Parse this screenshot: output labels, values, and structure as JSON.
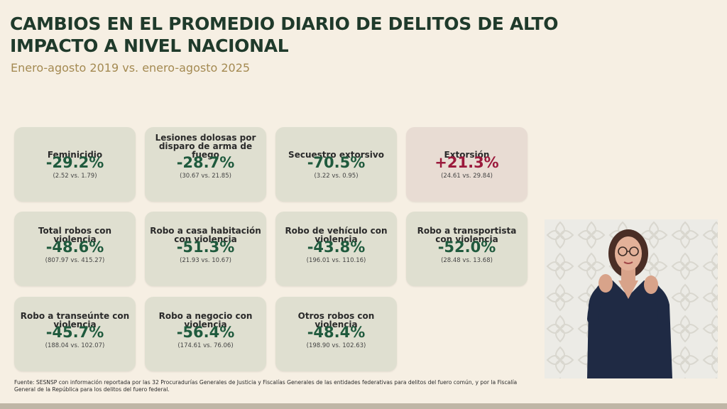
{
  "title": "CAMBIOS EN EL PROMEDIO DIARIO DE DELITOS DE ALTO IMPACTO A NIVEL NACIONAL",
  "subtitle": "Enero-agosto 2019 vs. enero-agosto 2025",
  "cards": [
    {
      "label": "Feminicidio",
      "pct": "-29.2%",
      "vals": "(2.52 vs. 1.79)",
      "trend": "down"
    },
    {
      "label": "Lesiones dolosas por disparo de arma de fuego",
      "pct": "-28.7%",
      "vals": "(30.67 vs. 21.85)",
      "trend": "down"
    },
    {
      "label": "Secuestro extorsivo",
      "pct": "-70.5%",
      "vals": "(3.22 vs. 0.95)",
      "trend": "down"
    },
    {
      "label": "Extorsión",
      "pct": "+21.3%",
      "vals": "(24.61 vs. 29.84)",
      "trend": "up"
    },
    {
      "label": "Total robos con violencia",
      "pct": "-48.6%",
      "vals": "(807.97 vs. 415.27)",
      "trend": "down"
    },
    {
      "label": "Robo a casa habitación con violencia",
      "pct": "-51.3%",
      "vals": "(21.93 vs. 10.67)",
      "trend": "down"
    },
    {
      "label": "Robo de vehículo con violencia",
      "pct": "-43.8%",
      "vals": "(196.01 vs. 110.16)",
      "trend": "down"
    },
    {
      "label": "Robo a transportista con violencia",
      "pct": "-52.0%",
      "vals": "(28.48 vs. 13.68)",
      "trend": "down"
    },
    {
      "label": "Robo a transeúnte con violencia",
      "pct": "-45.7%",
      "vals": "(188.04 vs. 102.07)",
      "trend": "down"
    },
    {
      "label": "Robo a negocio con violencia",
      "pct": "-56.4%",
      "vals": "(174.61 vs. 76.06)",
      "trend": "down"
    },
    {
      "label": "Otros robos con violencia",
      "pct": "-48.4%",
      "vals": "(198.90 vs. 102.63)",
      "trend": "down"
    }
  ],
  "footer": "Fuente: SESNSP con información reportada por las 32 Procuradurías Generales de Justicia y Fiscalías Generales de las entidades federativas para delitos del fuero común, y por la Fiscalía General de la República para los delitos del fuero federal.",
  "colors": {
    "background": "#f6efe3",
    "title": "#1f3a2b",
    "subtitle": "#a48a52",
    "card": "#dfdfd0",
    "card_increase": "#e8dcd3",
    "decrease": "#1f5a3d",
    "increase": "#9b1a3c"
  }
}
